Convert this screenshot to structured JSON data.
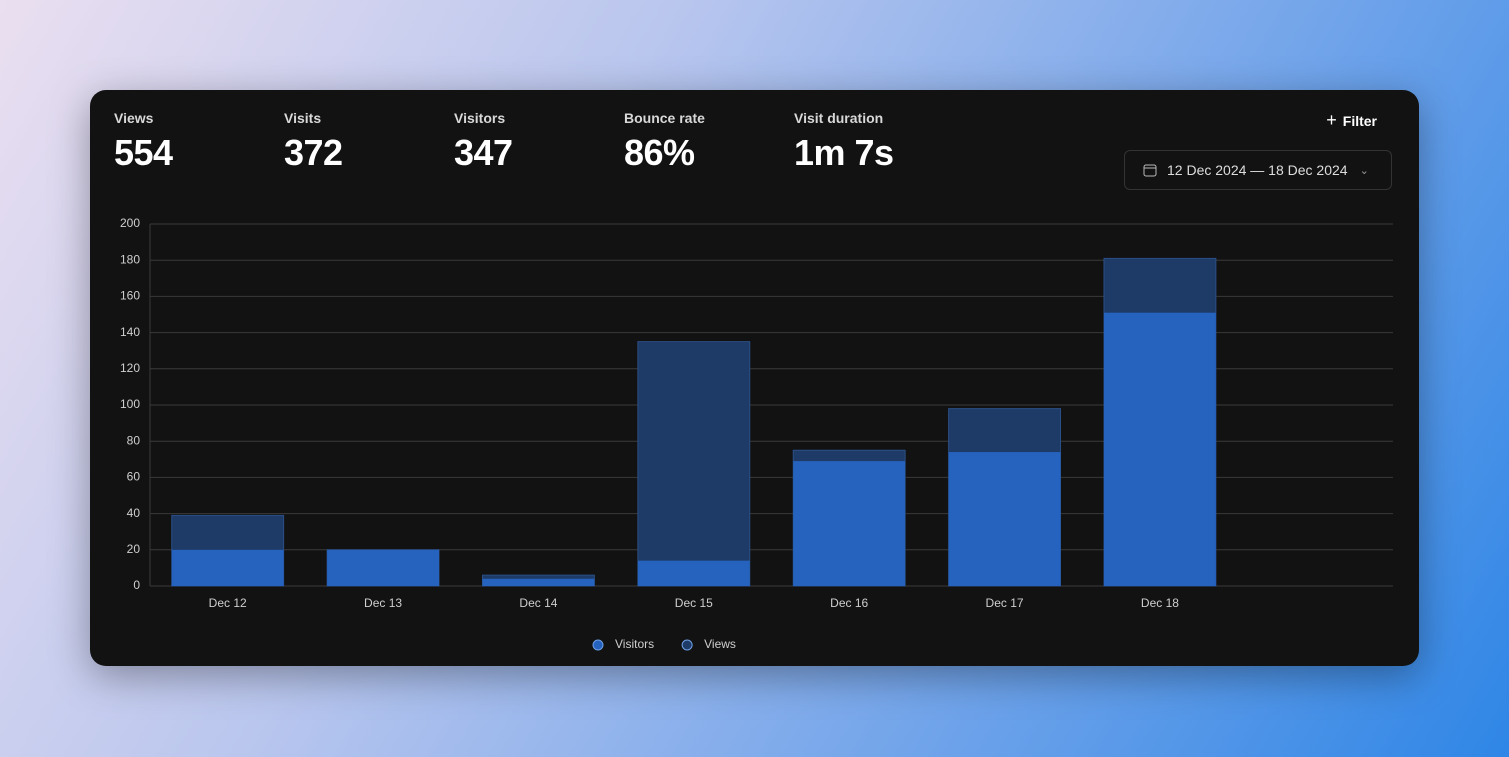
{
  "stats": [
    {
      "label": "Views",
      "value": "554"
    },
    {
      "label": "Visits",
      "value": "372"
    },
    {
      "label": "Visitors",
      "value": "347"
    },
    {
      "label": "Bounce rate",
      "value": "86%"
    },
    {
      "label": "Visit duration",
      "value": "1m 7s"
    }
  ],
  "filter_button": "Filter",
  "date_range": "12 Dec 2024 — 18 Dec 2024",
  "chart_data": {
    "type": "bar",
    "overlap": true,
    "categories": [
      "Dec 12",
      "Dec 13",
      "Dec 14",
      "Dec 15",
      "Dec 16",
      "Dec 17",
      "Dec 18",
      null
    ],
    "series": [
      {
        "name": "Views",
        "color": "#1e3a66",
        "values": [
          39,
          20,
          6,
          135,
          75,
          98,
          181,
          null
        ]
      },
      {
        "name": "Visitors",
        "color": "#2563bf",
        "values": [
          20,
          20,
          4,
          14,
          69,
          74,
          151,
          null
        ]
      }
    ],
    "legend_order": [
      1,
      0
    ],
    "ylim": [
      0,
      200
    ],
    "yticks": [
      0,
      20,
      40,
      60,
      80,
      100,
      120,
      140,
      160,
      180,
      200
    ],
    "grid": true
  }
}
